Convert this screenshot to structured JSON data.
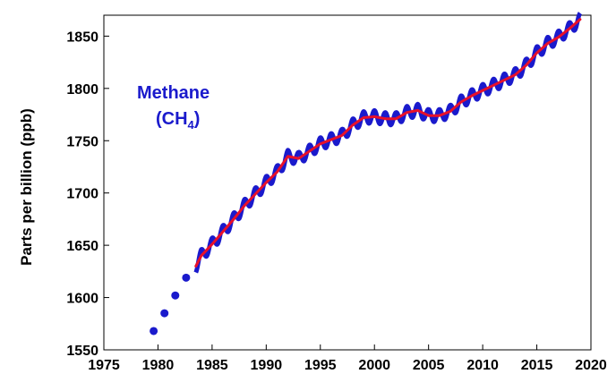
{
  "chart_data": {
    "type": "line",
    "title": "",
    "xlabel": "",
    "ylabel": "Parts per billion (ppb)",
    "xlim": [
      1975,
      2020
    ],
    "ylim": [
      1550,
      1870
    ],
    "x_ticks": [
      "1975",
      "1980",
      "1985",
      "1990",
      "1995",
      "2000",
      "2005",
      "2010",
      "2015",
      "2020"
    ],
    "y_ticks": [
      "1550",
      "1600",
      "1650",
      "1700",
      "1750",
      "1800",
      "1850"
    ],
    "grid": false,
    "legend": "none",
    "annotation": {
      "line1": "Methane",
      "line2_prefix": "(CH",
      "line2_sub": "4",
      "line2_suffix": ")"
    },
    "colors": {
      "early_points": "#1a1acc",
      "monthly": "#1a1acc",
      "trend": "#e8102a"
    },
    "series": [
      {
        "kind": "early_annual_points",
        "x": [
          1979.6,
          1980.6,
          1981.6,
          1982.6
        ],
        "values": [
          1568,
          1585,
          1602,
          1619
        ]
      },
      {
        "kind": "monthly_mean",
        "seasonal_amplitude": 6,
        "x": [
          1983.5,
          1984,
          1985,
          1986,
          1987,
          1988,
          1989,
          1990,
          1991,
          1992,
          1993,
          1994,
          1995,
          1996,
          1997,
          1998,
          1999,
          2000,
          2001,
          2002,
          2003,
          2004,
          2005,
          2006,
          2007,
          2008,
          2009,
          2010,
          2011,
          2012,
          2013,
          2014,
          2015,
          2016,
          2017,
          2018,
          2019
        ],
        "values": [
          1630,
          1640,
          1651,
          1663,
          1675,
          1688,
          1699,
          1710,
          1720,
          1735,
          1733,
          1740,
          1747,
          1751,
          1755,
          1765,
          1772,
          1773,
          1771,
          1771,
          1777,
          1779,
          1774,
          1774,
          1778,
          1787,
          1793,
          1798,
          1803,
          1808,
          1813,
          1822,
          1834,
          1843,
          1849,
          1857,
          1866
        ]
      },
      {
        "kind": "deseasonalized_trend",
        "x": [
          1983.5,
          1984,
          1985,
          1986,
          1987,
          1988,
          1989,
          1990,
          1991,
          1992,
          1993,
          1994,
          1995,
          1996,
          1997,
          1998,
          1999,
          2000,
          2001,
          2002,
          2003,
          2004,
          2005,
          2006,
          2007,
          2008,
          2009,
          2010,
          2011,
          2012,
          2013,
          2014,
          2015,
          2016,
          2017,
          2018,
          2019
        ],
        "values": [
          1630,
          1640,
          1651,
          1663,
          1675,
          1688,
          1699,
          1710,
          1720,
          1735,
          1733,
          1740,
          1747,
          1751,
          1755,
          1765,
          1772,
          1773,
          1771,
          1771,
          1777,
          1779,
          1774,
          1774,
          1778,
          1787,
          1793,
          1798,
          1803,
          1808,
          1813,
          1822,
          1834,
          1843,
          1849,
          1857,
          1866
        ]
      }
    ]
  }
}
